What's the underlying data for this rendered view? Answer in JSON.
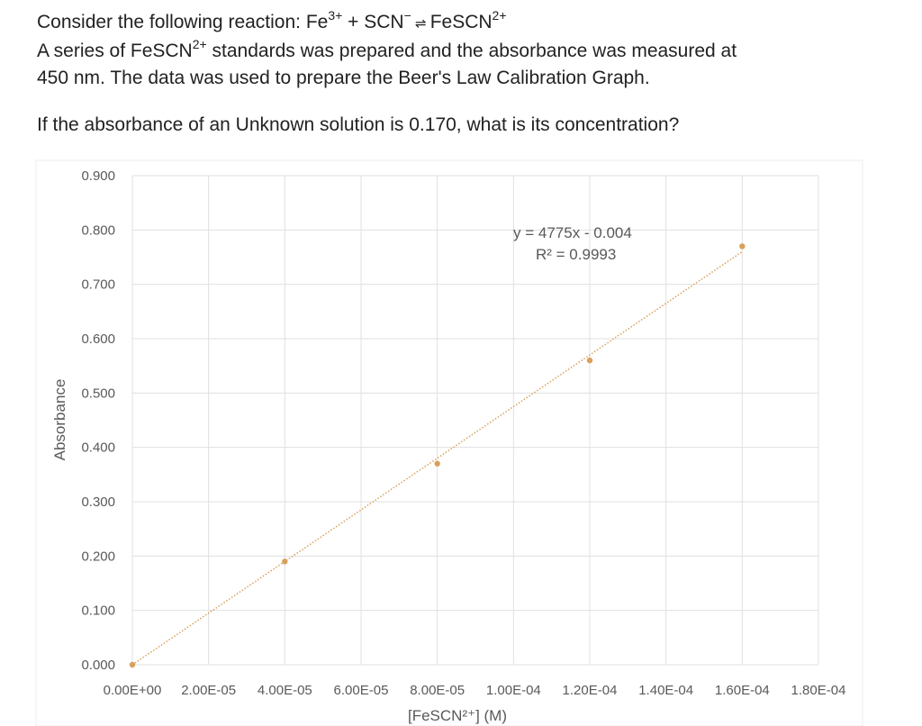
{
  "question": {
    "line1_prefix": "Consider the following reaction: Fe",
    "line1_sup1": "3+",
    "line1_mid": " + SCN",
    "line1_sup2": "−",
    "line1_arrow": " ⇌ ",
    "line1_species": "FeSCN",
    "line1_sup3": "2+",
    "line2_prefix": " A series of FeSCN",
    "line2_sup": "2+",
    "line2_suffix": " standards was prepared and the absorbance was measured at",
    "line3": "450 nm. The data was used to prepare the Beer's Law Calibration Graph.",
    "line4": "If the absorbance of an Unknown solution is 0.170, what is its concentration?"
  },
  "chart_data": {
    "type": "scatter",
    "title": "",
    "xlabel": "[FeSCN²⁺] (M)",
    "ylabel": "Absorbance",
    "xlim": [
      0,
      0.00018
    ],
    "ylim": [
      0,
      0.9
    ],
    "grid": true,
    "x_ticks": [
      "0.00E+00",
      "2.00E-05",
      "4.00E-05",
      "6.00E-05",
      "8.00E-05",
      "1.00E-04",
      "1.20E-04",
      "1.40E-04",
      "1.60E-04",
      "1.80E-04"
    ],
    "y_ticks": [
      "0.000",
      "0.100",
      "0.200",
      "0.300",
      "0.400",
      "0.500",
      "0.600",
      "0.700",
      "0.800",
      "0.900"
    ],
    "x": [
      0,
      4e-05,
      8e-05,
      0.00012,
      0.00016
    ],
    "y": [
      0.0,
      0.19,
      0.37,
      0.56,
      0.77
    ],
    "trendline": {
      "slope": 4775,
      "intercept": -0.004,
      "style": "dotted linear"
    },
    "annotation": {
      "equation": "y = 4775x - 0.004",
      "r2": "R² = 0.9993"
    },
    "marker_color": "#D9A05B",
    "grid_color": "#E0E0E0"
  }
}
